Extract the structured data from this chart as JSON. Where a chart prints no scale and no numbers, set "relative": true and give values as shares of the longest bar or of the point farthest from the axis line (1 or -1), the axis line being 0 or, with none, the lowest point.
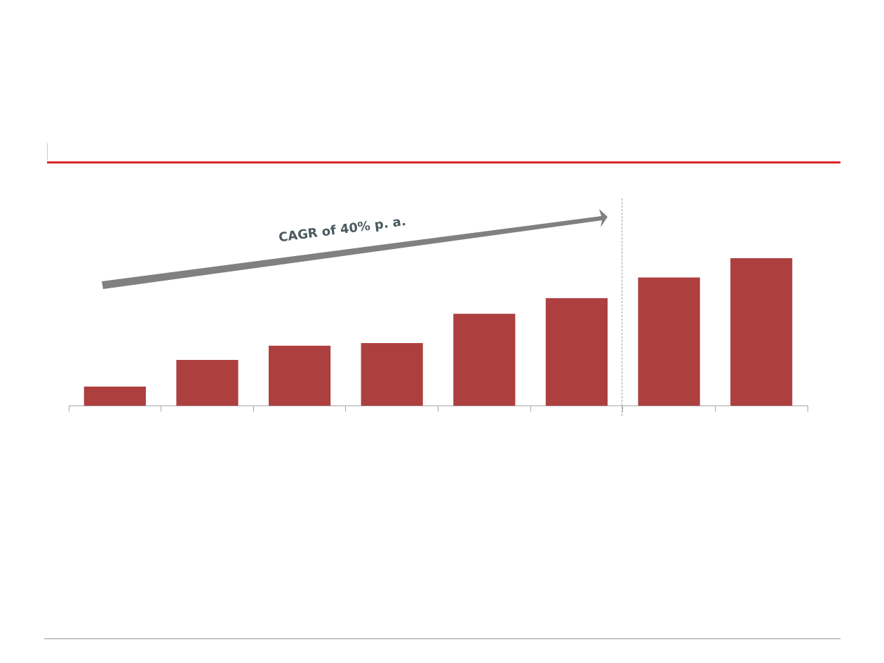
{
  "chart_data": {
    "type": "bar",
    "relative": true,
    "categories": [
      null,
      null,
      null,
      null,
      null,
      null,
      null,
      null
    ],
    "values": [
      0.131,
      0.312,
      0.407,
      0.425,
      0.624,
      0.729,
      0.869,
      1
    ],
    "color": "#ad3f3f",
    "grid": false,
    "legend": false,
    "annotations": [
      "CAGR of 40% p. a."
    ]
  }
}
